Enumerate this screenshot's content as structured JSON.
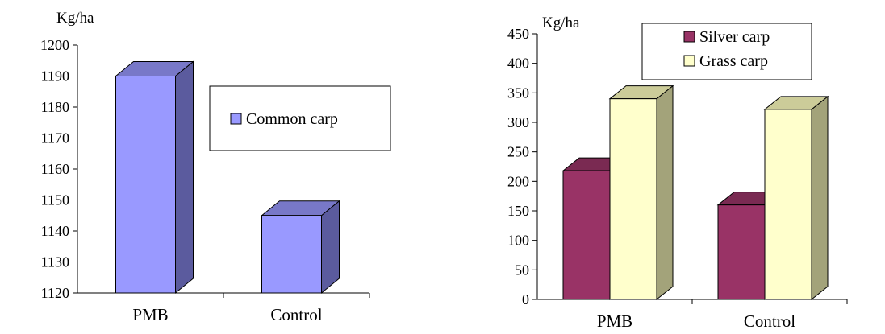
{
  "chart_data": [
    {
      "type": "bar",
      "title": "",
      "ylabel": "Kg/ha",
      "xlabel": "",
      "categories": [
        "PMB",
        "Control"
      ],
      "ylim": [
        1120,
        1200
      ],
      "yticks": [
        1120,
        1130,
        1140,
        1150,
        1160,
        1170,
        1180,
        1190,
        1200
      ],
      "series": [
        {
          "name": "Common carp",
          "values": [
            1190,
            1145
          ],
          "color": "#9999ff",
          "side_color": "#5b5b9e",
          "top_color": "#7878c8"
        }
      ],
      "legend": "center-right",
      "grid": false,
      "style": "3d"
    },
    {
      "type": "bar",
      "title": "",
      "ylabel": "Kg/ha",
      "xlabel": "",
      "categories": [
        "PMB",
        "Control"
      ],
      "ylim": [
        0,
        450
      ],
      "yticks": [
        0,
        50,
        100,
        150,
        200,
        250,
        300,
        350,
        400,
        450
      ],
      "series": [
        {
          "name": "Silver carp",
          "values": [
            218,
            160
          ],
          "color": "#993366",
          "side_color": "#5e1f40",
          "top_color": "#7a2a52"
        },
        {
          "name": "Grass carp",
          "values": [
            340,
            322
          ],
          "color": "#ffffcc",
          "side_color": "#a3a37a",
          "top_color": "#cccc99"
        }
      ],
      "legend": "top",
      "grid": false,
      "style": "3d"
    }
  ]
}
